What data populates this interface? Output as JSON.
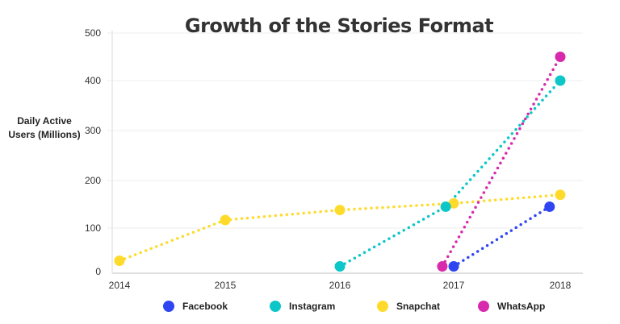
{
  "chart_data": {
    "type": "line",
    "title": "Growth of the Stories Format",
    "ylabel": "Daily Active Users (Millions)",
    "xlabel": "",
    "ylim": [
      0,
      500
    ],
    "yticks": [
      "0",
      "100",
      "200",
      "300",
      "400",
      "500"
    ],
    "xticks": [
      "2014",
      "2015",
      "2016",
      "2017",
      "2018"
    ],
    "grid": true,
    "legend": "bottom",
    "line_style": "dotted",
    "series": [
      {
        "name": "Facebook",
        "color": "#2f45f2",
        "points": [
          {
            "x": 2017.0,
            "y": 12
          },
          {
            "x": 2017.9,
            "y": 145
          }
        ]
      },
      {
        "name": "Instagram",
        "color": "#0cc6c8",
        "points": [
          {
            "x": 2016.0,
            "y": 12
          },
          {
            "x": 2016.93,
            "y": 145
          },
          {
            "x": 2018.0,
            "y": 400
          }
        ]
      },
      {
        "name": "Snapchat",
        "color": "#fedb2b",
        "points": [
          {
            "x": 2014.0,
            "y": 25
          },
          {
            "x": 2015.0,
            "y": 117
          },
          {
            "x": 2016.0,
            "y": 138
          },
          {
            "x": 2017.0,
            "y": 152
          },
          {
            "x": 2018.0,
            "y": 170
          }
        ]
      },
      {
        "name": "WhatsApp",
        "color": "#d82aac",
        "points": [
          {
            "x": 2016.9,
            "y": 12
          },
          {
            "x": 2018.0,
            "y": 450
          }
        ]
      }
    ]
  }
}
